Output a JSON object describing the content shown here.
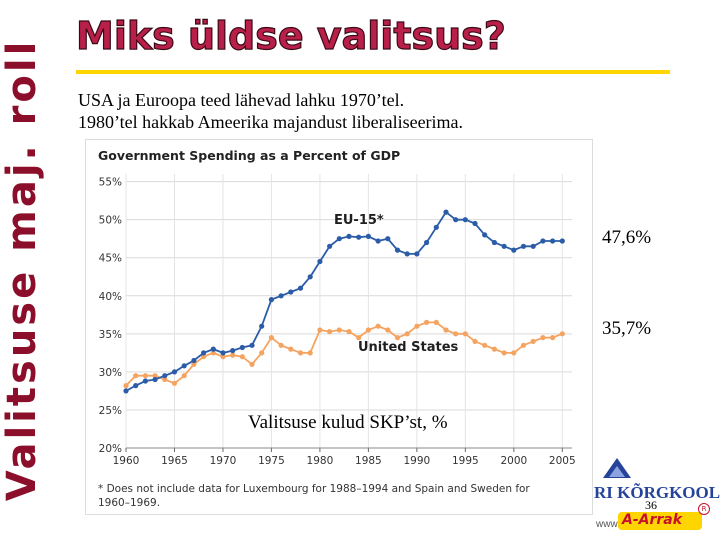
{
  "slide": {
    "side_title": "Valitsuse maj. roll",
    "title": "Miks üldse valitsus?",
    "subtitle_lines": [
      "USA ja Euroopa teed lähevad lahku 1970’tel.",
      "1980’tel hakkab Ameerika majandust liberaliseerima."
    ],
    "callout_eu": "47,6%",
    "callout_us": "35,7%",
    "caption": "Valitsuse kulud SKP’st, %",
    "page_number": "36",
    "logo_text": "RI KÕRGKOOL",
    "www": "www.",
    "www_logo": "A-Arrak",
    "registered": "R"
  },
  "colors": {
    "eu_series": "#2a5ca8",
    "us_series": "#f4a460",
    "title": "#b81f49",
    "side_title": "#8b0f2a",
    "underline": "#ffd500"
  },
  "chart_data": {
    "type": "line",
    "title": "Government Spending as a Percent of GDP",
    "footnote_lines": [
      "* Does not include data for Luxembourg for 1988–1994 and Spain and Sweden for",
      "1960–1969."
    ],
    "x_ticks": [
      1960,
      1965,
      1970,
      1975,
      1980,
      1985,
      1990,
      1995,
      2000,
      2005
    ],
    "y_ticks": [
      20,
      25,
      30,
      35,
      40,
      45,
      50,
      55
    ],
    "y_tick_labels": [
      "20%",
      "25%",
      "30%",
      "35%",
      "40%",
      "45%",
      "50%",
      "55%"
    ],
    "xlim": [
      1960,
      2006
    ],
    "ylim": [
      20,
      56
    ],
    "grid": true,
    "x": [
      1960,
      1961,
      1962,
      1963,
      1964,
      1965,
      1966,
      1967,
      1968,
      1969,
      1970,
      1971,
      1972,
      1973,
      1974,
      1975,
      1976,
      1977,
      1978,
      1979,
      1980,
      1981,
      1982,
      1983,
      1984,
      1985,
      1986,
      1987,
      1988,
      1989,
      1990,
      1991,
      1992,
      1993,
      1994,
      1995,
      1996,
      1997,
      1998,
      1999,
      2000,
      2001,
      2002,
      2003,
      2004,
      2005
    ],
    "series": [
      {
        "name": "EU-15*",
        "values": [
          27.5,
          28.2,
          28.8,
          29.0,
          29.5,
          30.0,
          30.8,
          31.5,
          32.5,
          33.0,
          32.5,
          32.8,
          33.2,
          33.5,
          36.0,
          39.5,
          40.0,
          40.5,
          41.0,
          42.5,
          44.5,
          46.5,
          47.5,
          47.8,
          47.7,
          47.8,
          47.2,
          47.5,
          46.0,
          45.5,
          45.5,
          47.0,
          49.0,
          51.0,
          50.0,
          50.0,
          49.5,
          48.0,
          47.0,
          46.5,
          46.0,
          46.5,
          46.5,
          47.2,
          47.2,
          47.2
        ]
      },
      {
        "name": "United States",
        "values": [
          28.2,
          29.5,
          29.5,
          29.5,
          29.0,
          28.5,
          29.5,
          31.0,
          32.0,
          32.5,
          32.0,
          32.2,
          32.0,
          31.0,
          32.5,
          34.5,
          33.5,
          33.0,
          32.5,
          32.5,
          35.5,
          35.3,
          35.5,
          35.3,
          34.5,
          35.5,
          36.0,
          35.5,
          34.5,
          35.0,
          36.0,
          36.5,
          36.5,
          35.5,
          35.0,
          35.0,
          34.0,
          33.5,
          33.0,
          32.5,
          32.5,
          33.5,
          34.0,
          34.5,
          34.5,
          35.0
        ]
      }
    ],
    "series_labels": [
      "EU-15*",
      "United States"
    ]
  }
}
